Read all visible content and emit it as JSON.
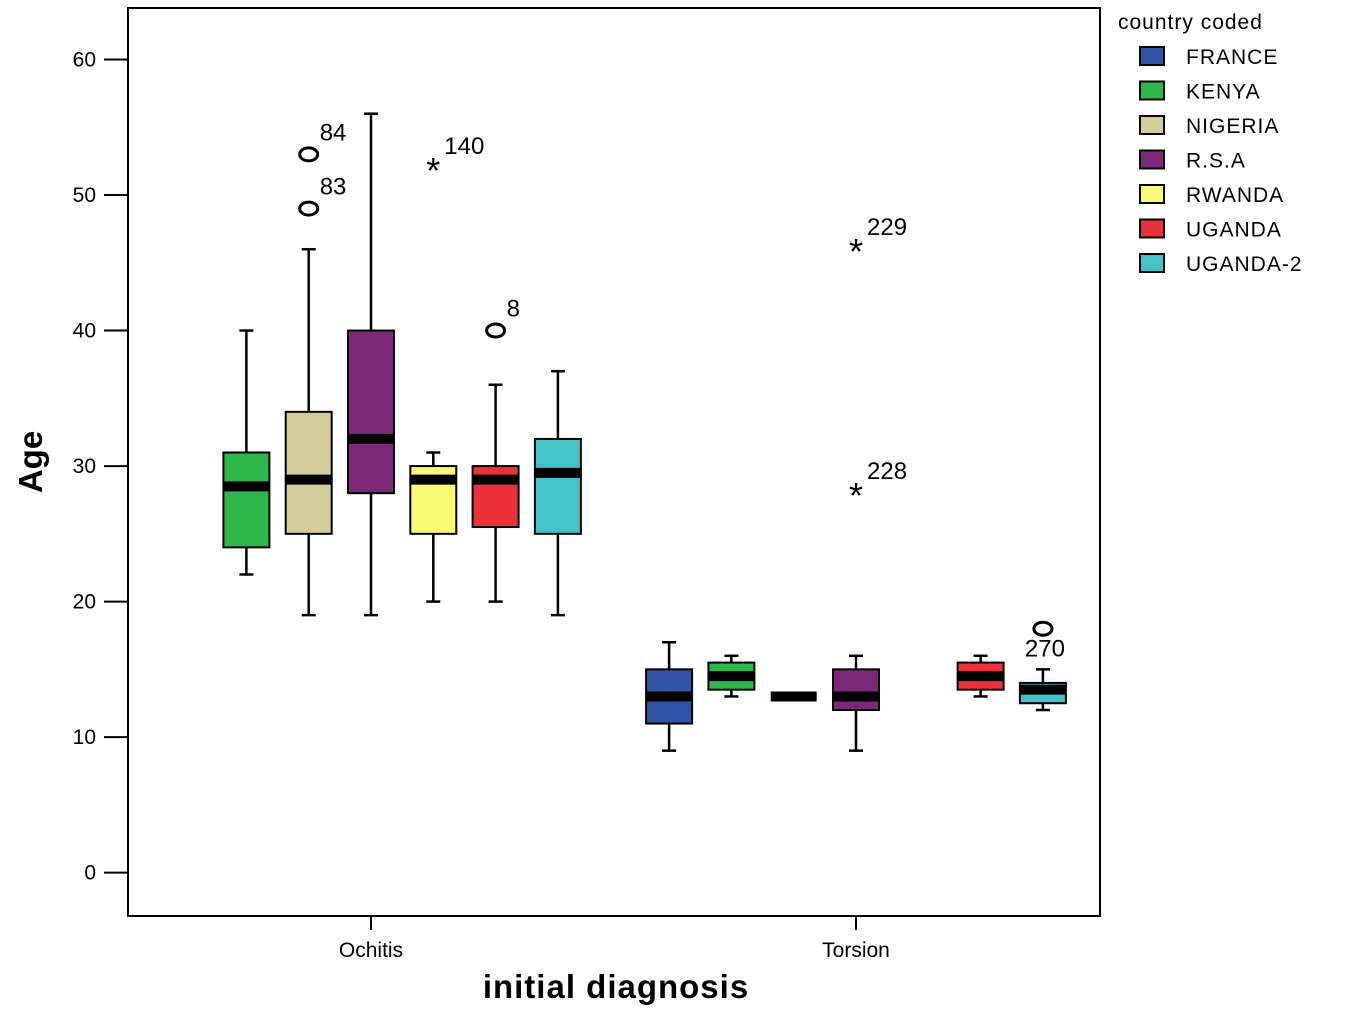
{
  "chart_data": {
    "type": "boxplot",
    "xlabel": "initial diagnosis",
    "ylabel": "Age",
    "ylim": [
      -3.2,
      63.8
    ],
    "yticks": [
      0,
      10,
      20,
      30,
      40,
      50,
      60
    ],
    "categories": [
      "Ochitis",
      "Torsion"
    ],
    "legend": {
      "title": "country coded",
      "position": "right",
      "entries": [
        {
          "name": "FRANCE",
          "color": "#3153a4"
        },
        {
          "name": "KENYA",
          "color": "#2eb84b"
        },
        {
          "name": "NIGERIA",
          "color": "#d4cc9a"
        },
        {
          "name": "R.S.A",
          "color": "#7e2879"
        },
        {
          "name": "RWANDA",
          "color": "#fafa73"
        },
        {
          "name": "UGANDA",
          "color": "#eb3238"
        },
        {
          "name": "UGANDA-2",
          "color": "#43c3c8"
        }
      ]
    },
    "boxes": [
      {
        "category": "Ochitis",
        "series": "KENYA",
        "min": 22,
        "q1": 24,
        "median": 28.5,
        "q3": 31,
        "max": 40
      },
      {
        "category": "Ochitis",
        "series": "NIGERIA",
        "min": 19,
        "q1": 25,
        "median": 29,
        "q3": 34,
        "max": 46
      },
      {
        "category": "Ochitis",
        "series": "R.S.A",
        "min": 19,
        "q1": 28,
        "median": 32,
        "q3": 40,
        "max": 56
      },
      {
        "category": "Ochitis",
        "series": "RWANDA",
        "min": 20,
        "q1": 25,
        "median": 29,
        "q3": 30,
        "max": 31
      },
      {
        "category": "Ochitis",
        "series": "UGANDA",
        "min": 20,
        "q1": 25.5,
        "median": 29,
        "q3": 30,
        "max": 36
      },
      {
        "category": "Ochitis",
        "series": "UGANDA-2",
        "min": 19,
        "q1": 25,
        "median": 29.5,
        "q3": 32,
        "max": 37
      },
      {
        "category": "Torsion",
        "series": "FRANCE",
        "min": 9,
        "q1": 11,
        "median": 13,
        "q3": 15,
        "max": 17
      },
      {
        "category": "Torsion",
        "series": "KENYA",
        "min": 13,
        "q1": 13.5,
        "median": 14.5,
        "q3": 15.5,
        "max": 16
      },
      {
        "category": "Torsion",
        "series": "NIGERIA",
        "min": 13,
        "q1": 13,
        "median": 13,
        "q3": 13,
        "max": 13
      },
      {
        "category": "Torsion",
        "series": "R.S.A",
        "min": 9,
        "q1": 12,
        "median": 13,
        "q3": 15,
        "max": 16
      },
      {
        "category": "Torsion",
        "series": "UGANDA",
        "min": 13,
        "q1": 13.5,
        "median": 14.5,
        "q3": 15.5,
        "max": 16
      },
      {
        "category": "Torsion",
        "series": "UGANDA-2",
        "min": 12,
        "q1": 12.5,
        "median": 13.5,
        "q3": 14,
        "max": 15
      }
    ],
    "outliers": [
      {
        "category": "Ochitis",
        "series": "NIGERIA",
        "value": 53,
        "label": "84",
        "marker": "circle"
      },
      {
        "category": "Ochitis",
        "series": "NIGERIA",
        "value": 49,
        "label": "83",
        "marker": "circle"
      },
      {
        "category": "Ochitis",
        "series": "RWANDA",
        "value": 52,
        "label": "140",
        "marker": "star"
      },
      {
        "category": "Ochitis",
        "series": "UGANDA",
        "value": 40,
        "label": "8",
        "marker": "circle"
      },
      {
        "category": "Torsion",
        "series": "R.S.A",
        "value": 46,
        "label": "229",
        "marker": "star"
      },
      {
        "category": "Torsion",
        "series": "R.S.A",
        "value": 28,
        "label": "228",
        "marker": "star"
      },
      {
        "category": "Torsion",
        "series": "UGANDA-2",
        "value": 18,
        "label": "270",
        "marker": "circle"
      }
    ]
  }
}
